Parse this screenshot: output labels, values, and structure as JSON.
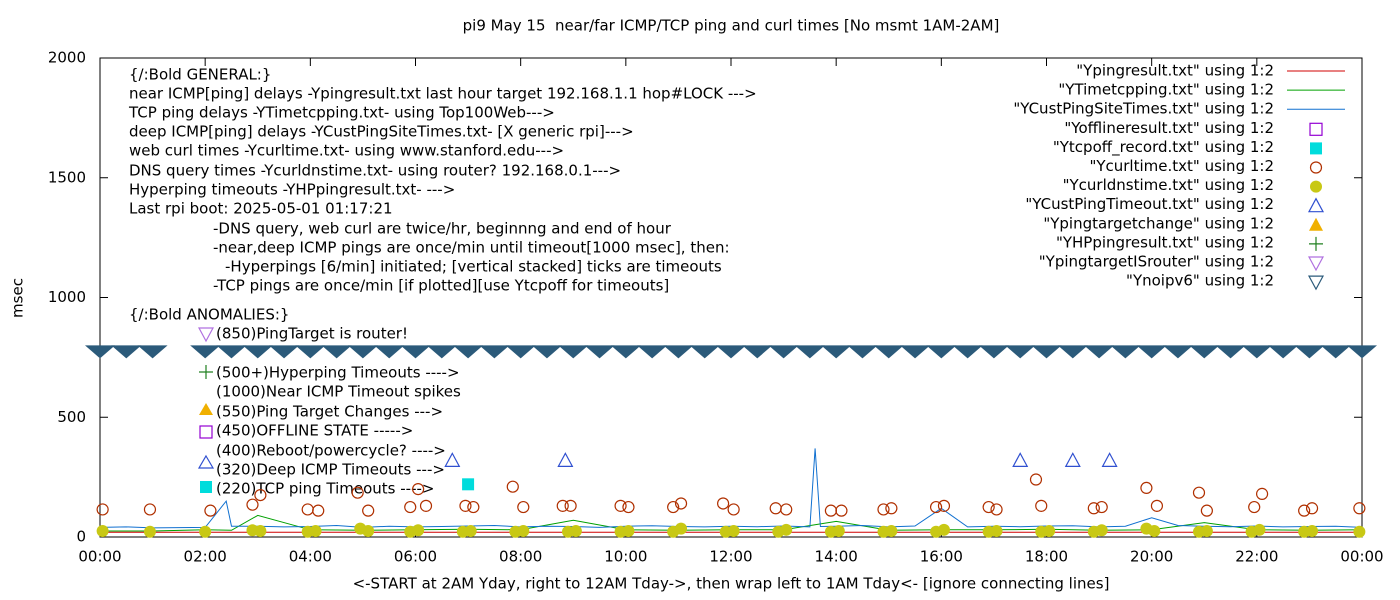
{
  "chart_data": {
    "type": "line",
    "title": "pi9 May 15  near/far ICMP/TCP ping and curl times [No msmt 1AM-2AM]",
    "x_label": "<-START at 2AM Yday, right to 12AM Tday->, then wrap left to 1AM Tday<- [ignore connecting lines]",
    "y_label": "msec",
    "xlim": [
      0,
      24
    ],
    "xticks": [
      {
        "value": 0,
        "label": "00:00"
      },
      {
        "value": 2,
        "label": "02:00"
      },
      {
        "value": 4,
        "label": "04:00"
      },
      {
        "value": 6,
        "label": "06:00"
      },
      {
        "value": 8,
        "label": "08:00"
      },
      {
        "value": 10,
        "label": "10:00"
      },
      {
        "value": 12,
        "label": "12:00"
      },
      {
        "value": 14,
        "label": "14:00"
      },
      {
        "value": 16,
        "label": "16:00"
      },
      {
        "value": 18,
        "label": "18:00"
      },
      {
        "value": 20,
        "label": "20:00"
      },
      {
        "value": 22,
        "label": "22:00"
      },
      {
        "value": 24,
        "label": "00:00"
      }
    ],
    "ylim": [
      0,
      2000
    ],
    "yticks": [
      0,
      500,
      1000,
      1500,
      2000
    ],
    "annotations": [
      "{/:Bold GENERAL:}",
      "near ICMP[ping] delays -Ypingresult.txt last hour target 192.168.1.1 hop#LOCK --->",
      "TCP ping delays -YTimetcpping.txt- using Top100Web--->",
      "deep ICMP[ping] delays -YCustPingSiteTimes.txt- [X generic rpi]--->",
      "web curl times -Ycurltime.txt- using www.stanford.edu--->",
      "DNS query times -Ycurldnstime.txt- using router? 192.168.0.1--->",
      "Hyperping timeouts -YHPpingresult.txt- --->",
      "Last rpi boot: 2025-05-01 01:17:21",
      "-DNS query, web curl are twice/hr, beginnng and end of hour",
      "-near,deep ICMP pings are once/min until timeout[1000 msec], then:",
      "-Hyperpings [6/min] initiated; [vertical stacked] ticks are timeouts",
      "-TCP pings are once/min [if plotted][use Ytcpoff for timeouts]",
      "{/:Bold ANOMALIES:}",
      "(850)PingTarget is router!",
      "(500+)Hyperping Timeouts ---->",
      "(1000)Near ICMP Timeout spikes",
      "(550)Ping Target Changes --->",
      "(450)OFFLINE STATE ----->",
      "(400)Reboot/powercycle? ---->",
      "(320)Deep ICMP Timeouts --->",
      "(220)TCP ping Timeouts ---->"
    ],
    "series": [
      {
        "name": "\"Ypingresult.txt\" using 1:2",
        "color": "#d00000",
        "symbol": "line",
        "x": [
          0,
          24
        ],
        "values": [
          20,
          20
        ]
      },
      {
        "name": "\"YTimetcpping.txt\" using 1:2",
        "color": "#00a000",
        "symbol": "line",
        "x": [
          0,
          1,
          2,
          2.5,
          3,
          4,
          5,
          6,
          7,
          8,
          9,
          10,
          11,
          12,
          13,
          14,
          15,
          16,
          17,
          18,
          19,
          20,
          21,
          22,
          23,
          24
        ],
        "values": [
          25,
          25,
          30,
          28,
          90,
          30,
          28,
          30,
          32,
          30,
          70,
          30,
          28,
          30,
          30,
          65,
          28,
          30,
          30,
          32,
          28,
          30,
          60,
          30,
          28,
          30
        ]
      },
      {
        "name": "\"YCustPingSiteTimes.txt\" using 1:2",
        "color": "#1070d0",
        "symbol": "line",
        "x": [
          0,
          0.5,
          1,
          2,
          2.4,
          2.5,
          3,
          3.5,
          4,
          4.5,
          5,
          5.5,
          6,
          6.5,
          7,
          7.5,
          8,
          8.5,
          9,
          9.5,
          10,
          10.5,
          11,
          11.5,
          12,
          12.5,
          13,
          13.5,
          13.6,
          13.7,
          14,
          14.5,
          15,
          15.5,
          16,
          16.5,
          17,
          17.5,
          18,
          18.5,
          19,
          19.5,
          20,
          20.5,
          21,
          21.5,
          22,
          22.5,
          23,
          23.5,
          24
        ],
        "values": [
          40,
          42,
          38,
          40,
          150,
          45,
          45,
          42,
          44,
          48,
          40,
          45,
          42,
          44,
          46,
          48,
          42,
          45,
          44,
          40,
          45,
          47,
          44,
          42,
          45,
          43,
          46,
          42,
          370,
          44,
          45,
          48,
          42,
          46,
          120,
          42,
          45,
          43,
          46,
          47,
          42,
          45,
          80,
          48,
          45,
          43,
          46,
          42,
          44,
          45,
          40
        ]
      },
      {
        "name": "\"Yofflineresult.txt\" using 1:2",
        "color": "#9400d3",
        "symbol": "square",
        "x": [],
        "values": []
      },
      {
        "name": "\"Ytcpoff_record.txt\" using 1:2",
        "color": "#00dcdc",
        "symbol": "filled-square",
        "x": [
          7.0
        ],
        "values": [
          220
        ]
      },
      {
        "name": "\"Ycurltime.txt\" using 1:2",
        "color": "#b03000",
        "symbol": "circle",
        "x": [
          0.05,
          0.95,
          2.1,
          2.9,
          3.05,
          3.95,
          4.15,
          4.9,
          5.1,
          5.9,
          6.05,
          6.2,
          6.95,
          7.1,
          7.85,
          8.05,
          8.8,
          8.95,
          9.9,
          10.05,
          10.9,
          11.05,
          11.85,
          12.05,
          12.85,
          13.05,
          13.9,
          14.1,
          14.9,
          15.05,
          15.9,
          16.05,
          16.9,
          17.05,
          17.8,
          17.9,
          18.9,
          19.05,
          19.9,
          20.1,
          20.9,
          21.05,
          21.95,
          22.1,
          22.9,
          23.05,
          23.95
        ],
        "values": [
          115,
          115,
          110,
          135,
          175,
          115,
          110,
          185,
          110,
          125,
          200,
          130,
          130,
          125,
          210,
          125,
          130,
          130,
          130,
          125,
          125,
          140,
          140,
          115,
          120,
          115,
          110,
          110,
          115,
          120,
          125,
          130,
          125,
          115,
          240,
          130,
          120,
          125,
          205,
          130,
          185,
          110,
          125,
          180,
          110,
          120,
          120
        ]
      },
      {
        "name": "\"Ycurldnstime.txt\" using 1:2",
        "color": "#c8c814",
        "symbol": "dot",
        "x": [
          0.05,
          0.95,
          2.0,
          2.9,
          3.05,
          3.95,
          4.1,
          4.95,
          5.1,
          5.9,
          6.05,
          6.9,
          7.05,
          7.9,
          8.05,
          8.9,
          9.05,
          9.9,
          10.05,
          10.9,
          11.05,
          11.9,
          12.05,
          12.9,
          13.05,
          13.9,
          14.05,
          14.9,
          15.05,
          15.9,
          16.05,
          16.9,
          17.05,
          17.9,
          18.05,
          18.9,
          19.05,
          19.9,
          20.05,
          20.9,
          21.05,
          21.9,
          22.05,
          22.9,
          23.05,
          23.95
        ],
        "values": [
          25,
          22,
          22,
          28,
          25,
          22,
          25,
          35,
          25,
          22,
          28,
          22,
          25,
          22,
          25,
          22,
          25,
          22,
          25,
          22,
          35,
          22,
          25,
          22,
          30,
          22,
          25,
          22,
          25,
          22,
          30,
          22,
          25,
          22,
          25,
          22,
          28,
          35,
          25,
          22,
          25,
          22,
          30,
          22,
          25,
          22
        ]
      },
      {
        "name": "\"YCustPingTimeout.txt\" using 1:2",
        "color": "#3050d0",
        "symbol": "triangle",
        "x": [
          6.7,
          8.85,
          17.5,
          18.5,
          19.2
        ],
        "values": [
          320,
          320,
          320,
          320,
          320
        ]
      },
      {
        "name": "\"Ypingtargetchange\" using 1:2",
        "color": "#f0b000",
        "symbol": "filled-triangle",
        "x": [],
        "values": []
      },
      {
        "name": "\"YHPpingresult.txt\" using 1:2",
        "color": "#208020",
        "symbol": "plus",
        "x": [],
        "values": []
      },
      {
        "name": "\"YpingtargetISrouter\" using 1:2",
        "color": "#b070e0",
        "symbol": "down-triangle",
        "x": [],
        "values": []
      },
      {
        "name": "\"Ynoipv6\" using 1:2",
        "color": "#2b5a7a",
        "symbol": "down-triangle",
        "x": [
          0,
          0.5,
          1,
          2,
          2.5,
          3,
          3.5,
          4,
          4.5,
          5,
          5.5,
          6,
          6.5,
          7,
          7.5,
          8,
          8.5,
          9,
          9.5,
          10,
          10.5,
          11,
          11.5,
          12,
          12.5,
          13,
          13.5,
          14,
          14.5,
          15,
          15.5,
          16,
          16.5,
          17,
          17.5,
          18,
          18.5,
          19,
          19.5,
          20,
          20.5,
          21,
          21.5,
          22,
          22.5,
          23,
          23.5,
          24
        ],
        "values": [
          775,
          775,
          775,
          775,
          775,
          775,
          775,
          775,
          775,
          775,
          775,
          775,
          775,
          775,
          775,
          775,
          775,
          775,
          775,
          775,
          775,
          775,
          775,
          775,
          775,
          775,
          775,
          775,
          775,
          775,
          775,
          775,
          775,
          775,
          775,
          775,
          775,
          775,
          775,
          775,
          775,
          775,
          775,
          775,
          775,
          775,
          775,
          775
        ]
      }
    ]
  }
}
